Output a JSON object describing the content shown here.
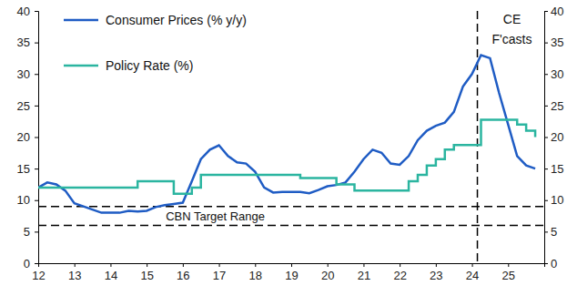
{
  "chart_data": {
    "type": "line",
    "x": [
      2012,
      2012.25,
      2012.5,
      2012.75,
      2013,
      2013.25,
      2013.5,
      2013.75,
      2014,
      2014.25,
      2014.5,
      2014.75,
      2015,
      2015.25,
      2015.5,
      2015.75,
      2016,
      2016.25,
      2016.5,
      2016.75,
      2017,
      2017.25,
      2017.5,
      2017.75,
      2018,
      2018.25,
      2018.5,
      2018.75,
      2019,
      2019.25,
      2019.5,
      2019.75,
      2020,
      2020.25,
      2020.5,
      2020.75,
      2021,
      2021.25,
      2021.5,
      2021.75,
      2022,
      2022.25,
      2022.5,
      2022.75,
      2023,
      2023.25,
      2023.5,
      2023.75,
      2024,
      2024.25,
      2024.5,
      2024.75,
      2025,
      2025.25,
      2025.5,
      2025.75
    ],
    "series": [
      {
        "name": "Consumer Prices (% y/y)",
        "color": "#1f5cc4",
        "line_style": "solid",
        "values": [
          12,
          12.8,
          12.5,
          11.5,
          9.5,
          9,
          8.5,
          8,
          8,
          8,
          8.3,
          8.2,
          8.3,
          8.9,
          9.2,
          9.4,
          9.6,
          13,
          16.5,
          18,
          18.7,
          17,
          16,
          15.8,
          14.5,
          12,
          11.2,
          11.3,
          11.3,
          11.3,
          11.1,
          11.6,
          12.2,
          12.4,
          12.8,
          14.5,
          16.5,
          18,
          17.5,
          15.8,
          15.6,
          17,
          19.5,
          21,
          21.8,
          22.3,
          24,
          28,
          30,
          33,
          32.5,
          27,
          22,
          17,
          15.5,
          15
        ]
      },
      {
        "name": "Policy Rate (%)",
        "color": "#2bb5a0",
        "line_style": "step",
        "values": [
          12,
          12,
          12,
          12,
          12,
          12,
          12,
          12,
          12,
          12,
          12,
          13,
          13,
          13,
          13,
          11,
          11,
          12,
          14,
          14,
          14,
          14,
          14,
          14,
          14,
          14,
          14,
          14,
          14,
          13.5,
          13.5,
          13.5,
          13.5,
          12.5,
          12.5,
          11.5,
          11.5,
          11.5,
          11.5,
          11.5,
          11.5,
          13,
          14,
          15.5,
          16.5,
          18,
          18.75,
          18.75,
          18.75,
          22.75,
          22.75,
          22.75,
          22.75,
          22,
          21,
          20
        ]
      }
    ],
    "xlim": [
      2012,
      2026
    ],
    "xticks": [
      {
        "value": 2012,
        "label": "12"
      },
      {
        "value": 2013,
        "label": "13"
      },
      {
        "value": 2014,
        "label": "14"
      },
      {
        "value": 2015,
        "label": "15"
      },
      {
        "value": 2016,
        "label": "16"
      },
      {
        "value": 2017,
        "label": "17"
      },
      {
        "value": 2018,
        "label": "18"
      },
      {
        "value": 2019,
        "label": "19"
      },
      {
        "value": 2020,
        "label": "20"
      },
      {
        "value": 2021,
        "label": "21"
      },
      {
        "value": 2022,
        "label": "22"
      },
      {
        "value": 2023,
        "label": "23"
      },
      {
        "value": 2024,
        "label": "24"
      },
      {
        "value": 2025,
        "label": "25"
      }
    ],
    "ylim": [
      0,
      40
    ],
    "yticks": [
      0,
      5,
      10,
      15,
      20,
      25,
      30,
      35,
      40
    ],
    "y2lim": [
      0,
      40
    ],
    "y2ticks": [
      0,
      5,
      10,
      15,
      20,
      25,
      30,
      35,
      40
    ],
    "legend": "top-left",
    "grid": false,
    "target_range": {
      "label": "CBN Target Range",
      "values": [
        6,
        9
      ]
    },
    "forecast_line": {
      "label": [
        "CE",
        "F'casts"
      ],
      "x": 2024.15
    }
  }
}
